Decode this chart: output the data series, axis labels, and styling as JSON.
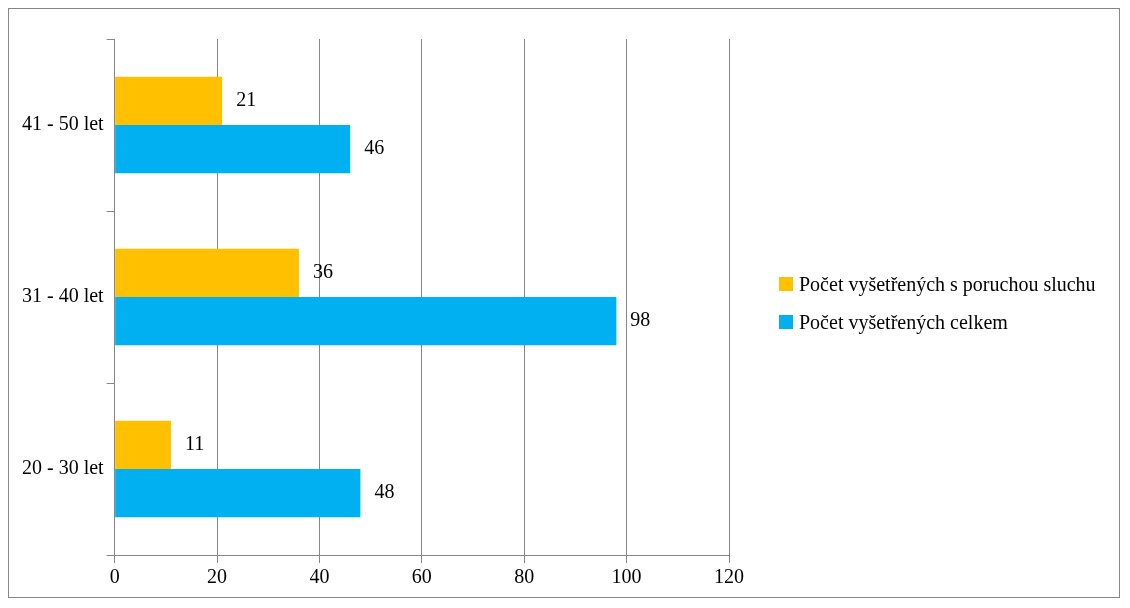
{
  "chart_data": {
    "type": "bar",
    "orientation": "horizontal",
    "categories": [
      "41 - 50 let",
      "31 - 40 let",
      "20 - 30 let"
    ],
    "series": [
      {
        "name": "Počet vyšetřených s poruchou sluchu",
        "color": "#ffc000",
        "values": [
          21,
          36,
          11
        ]
      },
      {
        "name": "Počet vyšetřených celkem",
        "color": "#00b0f0",
        "values": [
          46,
          98,
          48
        ]
      }
    ],
    "xlim": [
      0,
      120
    ],
    "xticks": [
      0,
      20,
      40,
      60,
      80,
      100,
      120
    ],
    "grid": "x",
    "legend": "right",
    "data_labels": true
  }
}
